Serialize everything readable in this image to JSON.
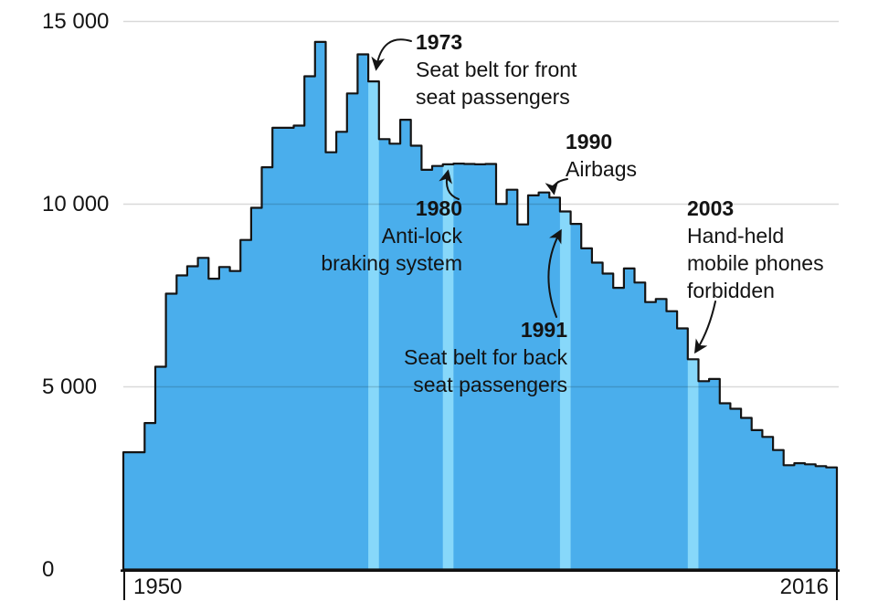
{
  "chart_data": {
    "type": "area",
    "title": "",
    "xlabel": "",
    "ylabel": "",
    "x_start": 1950,
    "x_end": 2016,
    "ylim": [
      0,
      15000
    ],
    "grid": true,
    "categories": [
      1950,
      1951,
      1952,
      1953,
      1954,
      1955,
      1956,
      1957,
      1958,
      1959,
      1960,
      1961,
      1962,
      1963,
      1964,
      1965,
      1966,
      1967,
      1968,
      1969,
      1970,
      1971,
      1972,
      1973,
      1974,
      1975,
      1976,
      1977,
      1978,
      1979,
      1980,
      1981,
      1982,
      1983,
      1984,
      1985,
      1986,
      1987,
      1988,
      1989,
      1990,
      1991,
      1992,
      1993,
      1994,
      1995,
      1996,
      1997,
      1998,
      1999,
      2000,
      2001,
      2002,
      2003,
      2004,
      2005,
      2006,
      2007,
      2008,
      2009,
      2010,
      2011,
      2012,
      2013,
      2014,
      2015,
      2016
    ],
    "values": [
      3210,
      3210,
      4010,
      5550,
      7550,
      8050,
      8300,
      8530,
      7960,
      8280,
      8170,
      9020,
      9900,
      11010,
      12090,
      12090,
      12150,
      13500,
      14440,
      11420,
      11980,
      13030,
      14100,
      13360,
      11780,
      11655,
      12310,
      11600,
      10940,
      11045,
      11090,
      11110,
      11100,
      11090,
      11100,
      10005,
      10395,
      9445,
      10240,
      10320,
      10180,
      9800,
      9460,
      8790,
      8400,
      8100,
      7710,
      8240,
      7855,
      7320,
      7405,
      7070,
      6600,
      5755,
      5155,
      5215,
      4550,
      4400,
      4150,
      3815,
      3630,
      3270,
      2855,
      2910,
      2880,
      2830,
      2795
    ],
    "highlighted_years": [
      1973,
      1980,
      1991,
      2003
    ],
    "yticks": [
      {
        "value": 0,
        "label": "0"
      },
      {
        "value": 5000,
        "label": "5 000"
      },
      {
        "value": 10000,
        "label": "10 000"
      },
      {
        "value": 15000,
        "label": "15 000"
      }
    ],
    "xticks": [
      {
        "label": "1950",
        "edge": "start"
      },
      {
        "label": "2016",
        "edge": "end"
      }
    ],
    "colors": {
      "area": "#4aaeec",
      "highlight": "#87d8fa",
      "outline": "#141414",
      "grid": "rgba(0,0,0,0.15)",
      "axis": "#111111",
      "text": "#131313"
    },
    "legend": "none"
  },
  "annotations": [
    {
      "year": "1973",
      "lines": [
        "Seat belt for front",
        "seat passengers"
      ],
      "align": "left",
      "target_year": 1973
    },
    {
      "year": "1980",
      "lines": [
        "Anti-lock",
        "braking system"
      ],
      "align": "right",
      "target_year": 1980
    },
    {
      "year": "1990",
      "lines": [
        "Airbags"
      ],
      "align": "left",
      "target_year": 1990
    },
    {
      "year": "1991",
      "lines": [
        "Seat belt for back",
        "seat passengers"
      ],
      "align": "right",
      "target_year": 1991
    },
    {
      "year": "2003",
      "lines": [
        "Hand-held",
        "mobile phones",
        "forbidden"
      ],
      "align": "left",
      "target_year": 2003
    }
  ]
}
